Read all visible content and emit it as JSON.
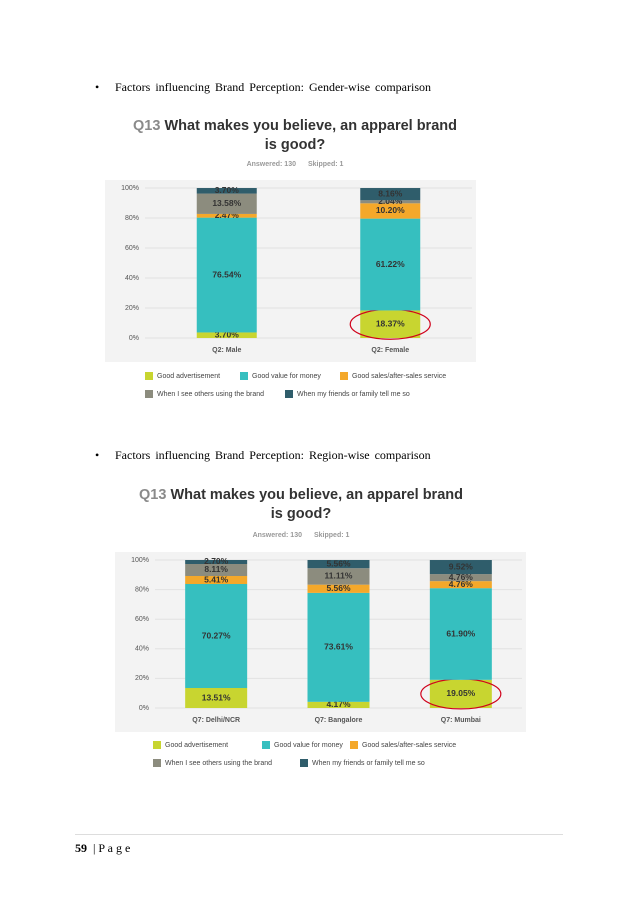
{
  "bullets": [
    "Factors influencing Brand Perception: Gender-wise comparison",
    "Factors influencing Brand Perception: Region-wise comparison"
  ],
  "chart_data": [
    {
      "type": "stacked_bar",
      "question": "Q13",
      "title": "What makes you believe, an apparel brand is good?",
      "answered": "Answered: 130",
      "skipped": "Skipped: 1",
      "categories": [
        "Q2: Male",
        "Q2: Female"
      ],
      "series": [
        {
          "name": "Good advertisement",
          "color": "#c8d530",
          "values": [
            3.7,
            18.37
          ],
          "value_labels": [
            "3.70%",
            "18.37%"
          ]
        },
        {
          "name": "Good value for money",
          "color": "#36bfbf",
          "values": [
            76.54,
            61.22
          ],
          "value_labels": [
            "76.54%",
            "61.22%"
          ]
        },
        {
          "name": "Good sales/after-sales service",
          "color": "#f4a82a",
          "values": [
            2.47,
            10.2
          ],
          "value_labels": [
            "2.47%",
            "10.20%"
          ]
        },
        {
          "name": "When I see others using the brand",
          "color": "#8c8c7e",
          "values": [
            13.58,
            2.04
          ],
          "value_labels": [
            "13.58%",
            "2.04%"
          ]
        },
        {
          "name": "When my friends or family tell me so",
          "color": "#2f5d6b",
          "values": [
            3.7,
            8.16
          ],
          "value_labels": [
            "3.70%",
            "8.16%"
          ]
        }
      ],
      "ylim": [
        0,
        100
      ],
      "yticks": [
        {
          "value": 0,
          "label": "0%"
        },
        {
          "value": 20,
          "label": "20%"
        },
        {
          "value": 40,
          "label": "40%"
        },
        {
          "value": 60,
          "label": "60%"
        },
        {
          "value": 80,
          "label": "80%"
        },
        {
          "value": 100,
          "label": "100%"
        }
      ],
      "grid": true
    },
    {
      "type": "stacked_bar",
      "question": "Q13",
      "title": "What makes you believe, an apparel brand is good?",
      "answered": "Answered: 130",
      "skipped": "Skipped: 1",
      "categories": [
        "Q7: Delhi/NCR",
        "Q7: Bangalore",
        "Q7: Mumbai"
      ],
      "series": [
        {
          "name": "Good advertisement",
          "color": "#c8d530",
          "values": [
            13.51,
            4.17,
            19.05
          ],
          "value_labels": [
            "13.51%",
            "4.17%",
            "19.05%"
          ]
        },
        {
          "name": "Good value for money",
          "color": "#36bfbf",
          "values": [
            70.27,
            73.61,
            61.9
          ],
          "value_labels": [
            "70.27%",
            "73.61%",
            "61.90%"
          ]
        },
        {
          "name": "Good sales/after-sales service",
          "color": "#f4a82a",
          "values": [
            5.41,
            5.56,
            4.76
          ],
          "value_labels": [
            "5.41%",
            "5.56%",
            "4.76%"
          ]
        },
        {
          "name": "When I see others using the brand",
          "color": "#8c8c7e",
          "values": [
            8.11,
            11.11,
            4.76
          ],
          "value_labels": [
            "8.11%",
            "11.11%",
            "4.76%"
          ]
        },
        {
          "name": "When my friends or family tell me so",
          "color": "#2f5d6b",
          "values": [
            2.7,
            5.56,
            9.52
          ],
          "value_labels": [
            "2.70%",
            "5.56%",
            "9.52%"
          ]
        }
      ],
      "ylim": [
        0,
        100
      ],
      "yticks": [
        {
          "value": 0,
          "label": "0%"
        },
        {
          "value": 20,
          "label": "20%"
        },
        {
          "value": 40,
          "label": "40%"
        },
        {
          "value": 60,
          "label": "60%"
        },
        {
          "value": 80,
          "label": "80%"
        },
        {
          "value": 100,
          "label": "100%"
        }
      ],
      "grid": true
    }
  ],
  "footer": {
    "number": "59",
    "separator": "|",
    "label": "P a g e"
  }
}
